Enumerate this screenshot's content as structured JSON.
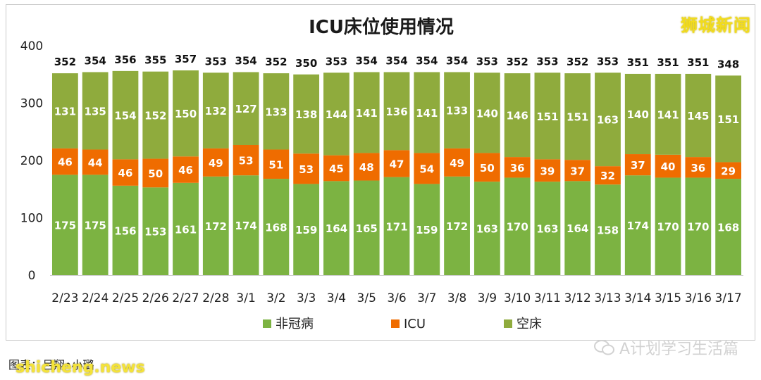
{
  "watermarks": {
    "top_right": "狮城新闻",
    "bottom_left": "shicheng.news",
    "bottom_right": "A计划学习生活篇",
    "source_note": "图表：吕翔•小璐"
  },
  "colors": {
    "non_covid": "#7cb342",
    "icu": "#ef6c00",
    "empty_bed": "#8fab3d"
  },
  "chart_data": {
    "type": "bar",
    "stacked": true,
    "title": "ICU床位使用情况",
    "xlabel": "",
    "ylabel": "",
    "ylim": [
      0,
      400
    ],
    "yticks": [
      0,
      100,
      200,
      300,
      400
    ],
    "grid": false,
    "legend_position": "bottom",
    "categories": [
      "2/23",
      "2/24",
      "2/25",
      "2/26",
      "2/27",
      "2/28",
      "3/1",
      "3/2",
      "3/3",
      "3/4",
      "3/5",
      "3/6",
      "3/7",
      "3/8",
      "3/9",
      "3/10",
      "3/11",
      "3/12",
      "3/13",
      "3/14",
      "3/15",
      "3/16",
      "3/17"
    ],
    "totals": [
      352,
      354,
      356,
      355,
      357,
      353,
      354,
      352,
      350,
      353,
      354,
      354,
      354,
      354,
      353,
      352,
      353,
      352,
      353,
      351,
      351,
      351,
      348
    ],
    "series": [
      {
        "name": "非冠病",
        "color": "#7cb342",
        "values": [
          175,
          175,
          156,
          153,
          161,
          172,
          174,
          168,
          159,
          164,
          165,
          171,
          159,
          172,
          163,
          170,
          163,
          164,
          158,
          174,
          170,
          170,
          168
        ]
      },
      {
        "name": "ICU",
        "color": "#ef6c00",
        "values": [
          46,
          44,
          46,
          50,
          46,
          49,
          53,
          51,
          53,
          45,
          48,
          47,
          54,
          49,
          50,
          36,
          39,
          37,
          32,
          37,
          40,
          36,
          29
        ]
      },
      {
        "name": "空床",
        "color": "#8fab3d",
        "values": [
          131,
          135,
          154,
          152,
          150,
          132,
          127,
          133,
          138,
          144,
          141,
          136,
          141,
          133,
          140,
          146,
          151,
          151,
          163,
          140,
          141,
          145,
          151
        ]
      }
    ]
  }
}
